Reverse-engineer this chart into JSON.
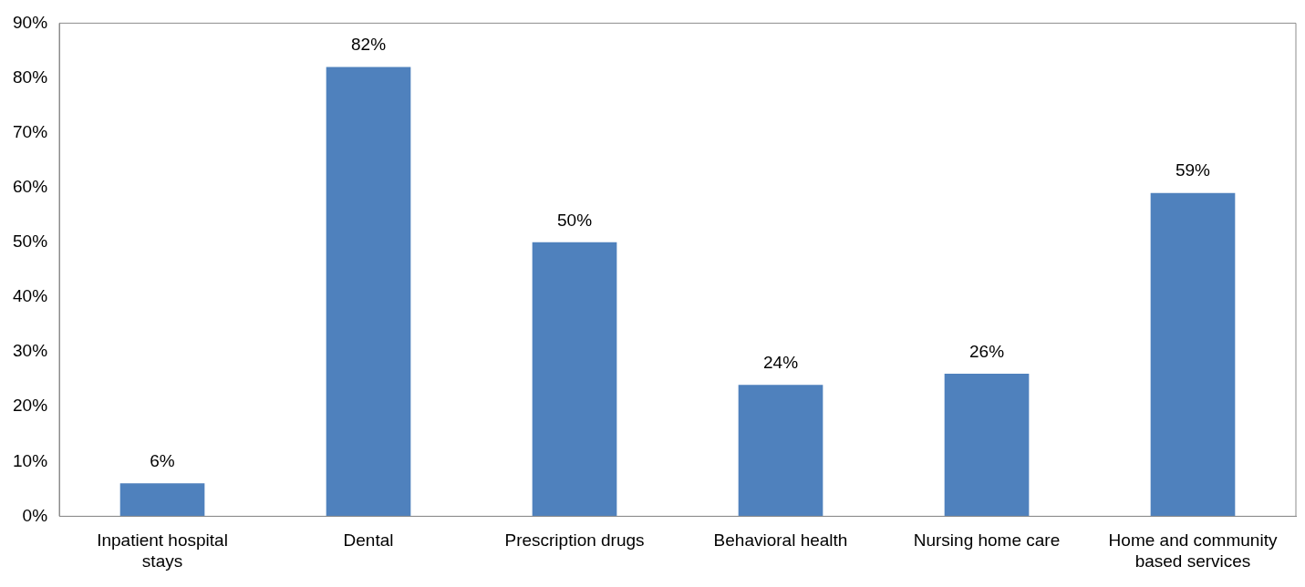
{
  "chart_data": {
    "type": "bar",
    "categories": [
      "Inpatient hospital stays",
      "Dental",
      "Prescription drugs",
      "Behavioral health",
      "Nursing home care",
      "Home and community based services"
    ],
    "values": [
      6,
      82,
      50,
      24,
      26,
      59
    ],
    "value_labels": [
      "6%",
      "82%",
      "50%",
      "24%",
      "26%",
      "59%"
    ],
    "color": "#4f81bd",
    "ylim": [
      0,
      90
    ],
    "yticks": [
      {
        "value": 0,
        "label": "0%"
      },
      {
        "value": 10,
        "label": "10%"
      },
      {
        "value": 20,
        "label": "20%"
      },
      {
        "value": 30,
        "label": "30%"
      },
      {
        "value": 40,
        "label": "40%"
      },
      {
        "value": 50,
        "label": "50%"
      },
      {
        "value": 60,
        "label": "60%"
      },
      {
        "value": 70,
        "label": "70%"
      },
      {
        "value": 80,
        "label": "80%"
      },
      {
        "value": 90,
        "label": "90%"
      }
    ]
  }
}
